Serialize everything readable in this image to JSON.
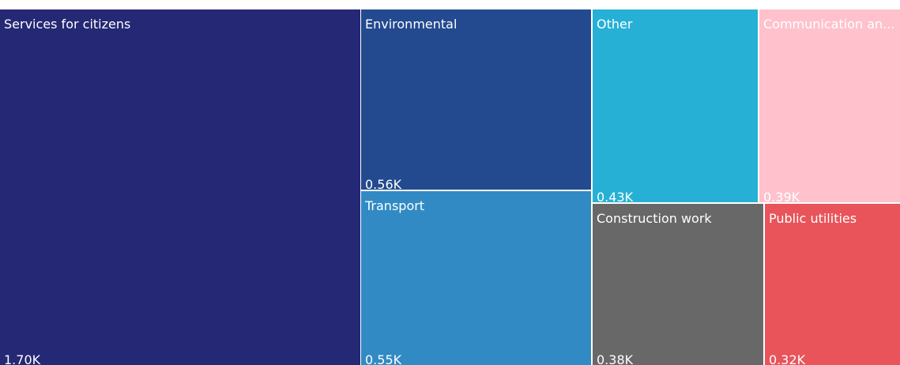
{
  "chart_data": {
    "type": "treemap",
    "items": [
      {
        "name": "Services for citizens",
        "value": 1700,
        "value_label": "1.70K",
        "color": "#252874",
        "text_color": "#ffffff"
      },
      {
        "name": "Environmental",
        "value": 560,
        "value_label": "0.56K",
        "color": "#234a8f",
        "text_color": "#ffffff"
      },
      {
        "name": "Transport",
        "value": 550,
        "value_label": "0.55K",
        "color": "#318ac4",
        "text_color": "#ffffff"
      },
      {
        "name": "Other",
        "value": 430,
        "value_label": "0.43K",
        "color": "#26b0d5",
        "text_color": "#ffffff"
      },
      {
        "name": "Communication an...",
        "value": 390,
        "value_label": "0.39K",
        "color": "#ffc2cc",
        "text_color": "#ffffff"
      },
      {
        "name": "Construction work",
        "value": 380,
        "value_label": "0.38K",
        "color": "#686868",
        "text_color": "#ffffff"
      },
      {
        "name": "Public utilities",
        "value": 320,
        "value_label": "0.32K",
        "color": "#e8545a",
        "text_color": "#ffffff"
      }
    ]
  }
}
